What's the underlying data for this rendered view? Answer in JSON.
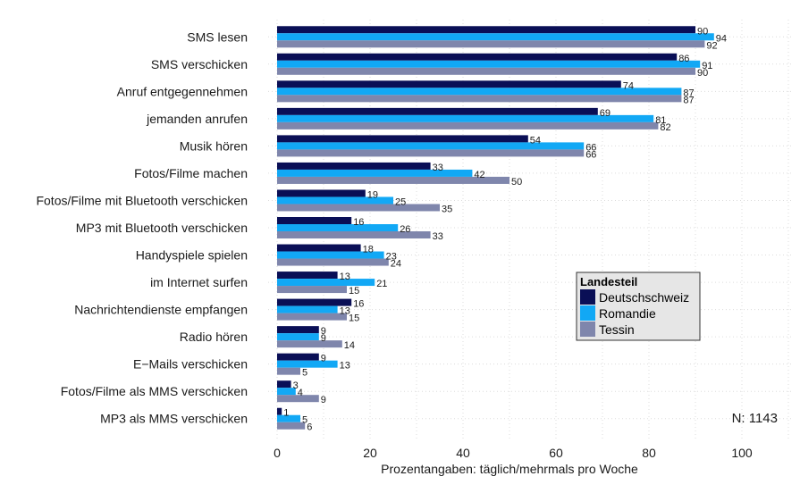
{
  "chart_data": {
    "type": "bar",
    "orientation": "horizontal",
    "title": "",
    "xlabel": "Prozentangaben: täglich/mehrmals pro Woche",
    "ylabel": "",
    "xlim": [
      0,
      100
    ],
    "xticks": [
      0,
      20,
      40,
      60,
      80,
      100
    ],
    "grid": true,
    "categories": [
      "SMS lesen",
      "SMS verschicken",
      "Anruf entgegennehmen",
      "jemanden anrufen",
      "Musik hören",
      "Fotos/Filme machen",
      "Fotos/Filme mit Bluetooth verschicken",
      "MP3 mit Bluetooth verschicken",
      "Handyspiele spielen",
      "im Internet surfen",
      "Nachrichtendienste empfangen",
      "Radio hören",
      "E−Mails verschicken",
      "Fotos/Filme als MMS verschicken",
      "MP3 als MMS verschicken"
    ],
    "series": [
      {
        "name": "Deutschschweiz",
        "color": "#0a0f56",
        "values": [
          90,
          86,
          74,
          69,
          54,
          33,
          19,
          16,
          18,
          13,
          16,
          9,
          9,
          3,
          1
        ]
      },
      {
        "name": "Romandie",
        "color": "#12a8f5",
        "values": [
          94,
          91,
          87,
          81,
          66,
          42,
          25,
          26,
          23,
          21,
          13,
          9,
          13,
          4,
          5
        ]
      },
      {
        "name": "Tessin",
        "color": "#7f86ac",
        "values": [
          92,
          90,
          87,
          82,
          66,
          50,
          35,
          33,
          24,
          15,
          15,
          14,
          5,
          9,
          6
        ]
      }
    ],
    "legend": {
      "title": "Landesteil",
      "placement": "right-middle",
      "background": "#e6e6e6"
    },
    "annotations": [
      {
        "text": "N: 1143",
        "placement": "bottom-right"
      }
    ]
  }
}
